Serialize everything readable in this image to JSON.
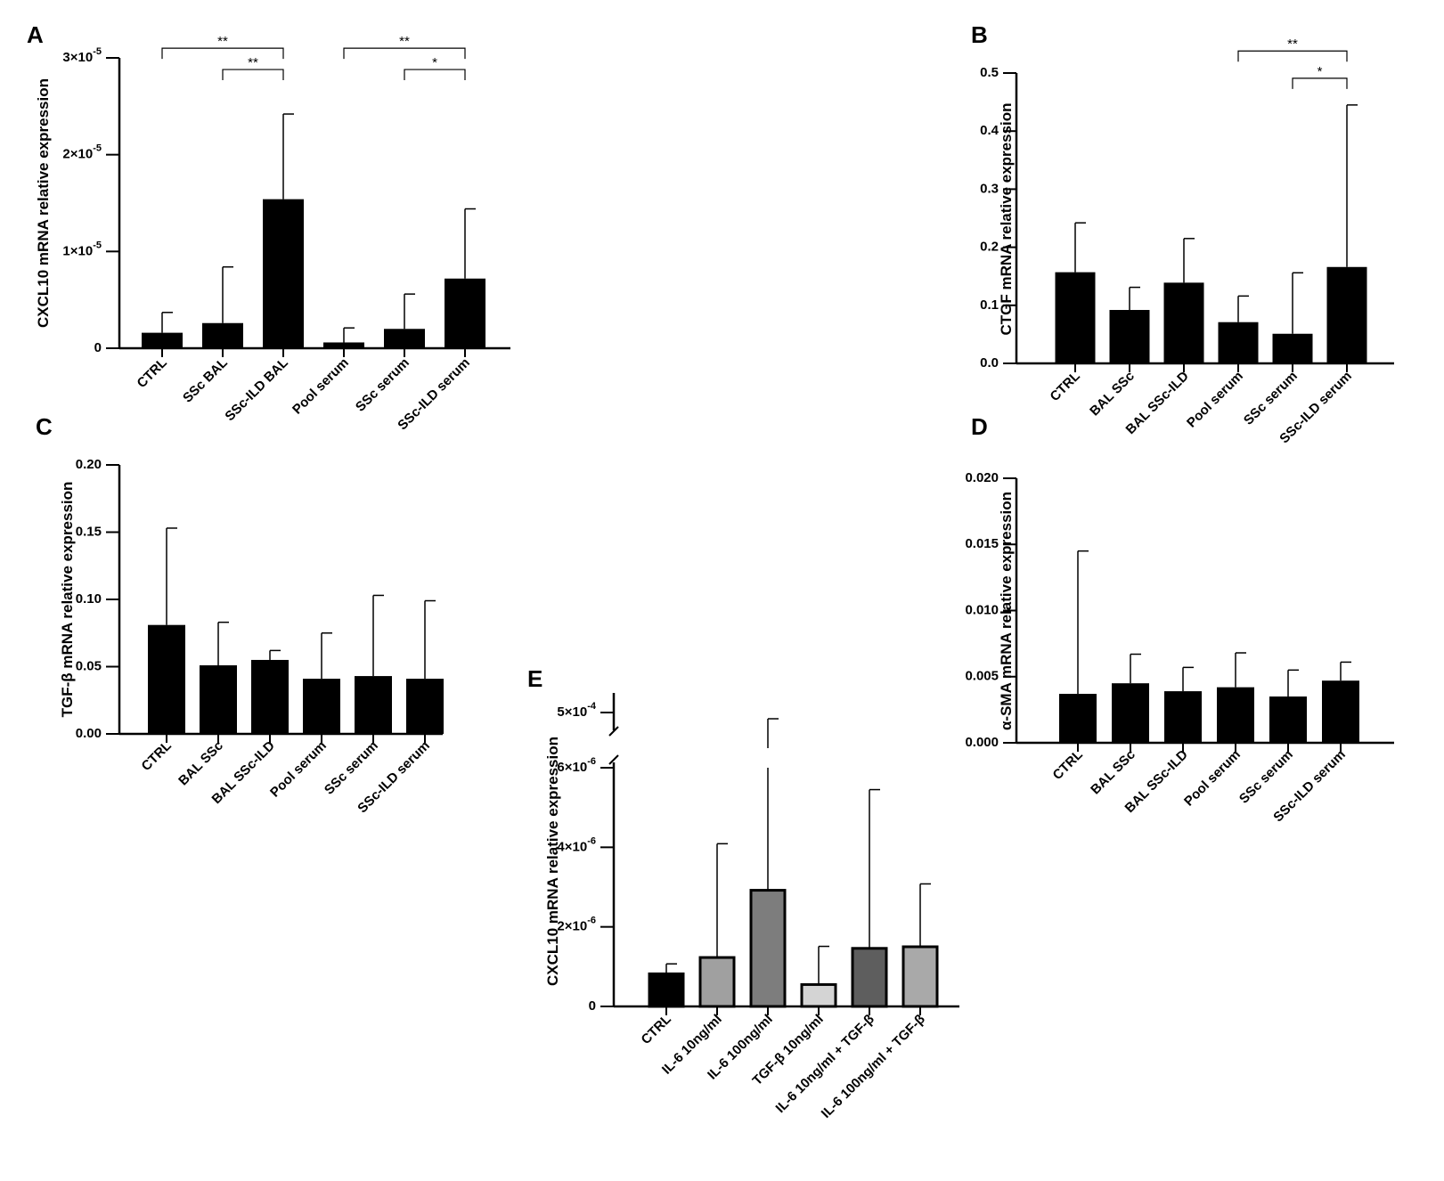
{
  "chart_data": [
    {
      "panel": "A",
      "type": "bar",
      "ylabel": "CXCL10 mRNA relative expression",
      "categories": [
        "CTRL",
        "SSc BAL",
        "SSc-ILD BAL",
        "Pool serum",
        "SSc serum",
        "SSc-ILD serum"
      ],
      "values": [
        1.6e-06,
        2.6e-06,
        1.54e-05,
        6e-07,
        2e-06,
        7.2e-06
      ],
      "errors": [
        2.1e-06,
        5.8e-06,
        8.8e-06,
        1.5e-06,
        3.6e-06,
        7.2e-06
      ],
      "ylim": [
        0,
        3e-05
      ],
      "ticks": [
        0,
        1e-05,
        2e-05,
        3e-05
      ],
      "tick_labels": [
        {
          "base": "0",
          "exp": ""
        },
        {
          "base": "1×10",
          "exp": "-5"
        },
        {
          "base": "2×10",
          "exp": "-5"
        },
        {
          "base": "3×10",
          "exp": "-5"
        }
      ],
      "bar_colors": [
        "#000000",
        "#000000",
        "#000000",
        "#000000",
        "#000000",
        "#000000"
      ],
      "significance": [
        {
          "from": 0,
          "to": 2,
          "label": "**",
          "level": 3.1e-05
        },
        {
          "from": 1,
          "to": 2,
          "label": "**",
          "level": 2.88e-05
        },
        {
          "from": 3,
          "to": 5,
          "label": "**",
          "level": 3.1e-05
        },
        {
          "from": 4,
          "to": 5,
          "label": "*",
          "level": 2.88e-05
        }
      ]
    },
    {
      "panel": "B",
      "type": "bar",
      "ylabel": "CTGF mRNA relative expression",
      "categories": [
        "CTRL",
        "BAL SSc",
        "BAL SSc-ILD",
        "Pool serum",
        "SSc serum",
        "SSc-ILD serum"
      ],
      "values": [
        0.157,
        0.092,
        0.139,
        0.071,
        0.051,
        0.166
      ],
      "errors": [
        0.085,
        0.039,
        0.076,
        0.045,
        0.105,
        0.279
      ],
      "ylim": [
        0,
        0.5
      ],
      "ticks": [
        0,
        0.1,
        0.2,
        0.3,
        0.4,
        0.5
      ],
      "tick_labels": [
        "0.0",
        "0.1",
        "0.2",
        "0.3",
        "0.4",
        "0.5"
      ],
      "bar_colors": [
        "#000000",
        "#000000",
        "#000000",
        "#000000",
        "#000000",
        "#000000"
      ],
      "significance": [
        {
          "from": 3,
          "to": 5,
          "label": "**",
          "level": 0.538
        },
        {
          "from": 4,
          "to": 5,
          "label": "*",
          "level": 0.491
        }
      ]
    },
    {
      "panel": "C",
      "type": "bar",
      "ylabel": "TGF-β mRNA relative expression",
      "categories": [
        "CTRL",
        "BAL SSc",
        "BAL SSc-ILD",
        "Pool serum",
        "SSc serum",
        "SSc-ILD serum"
      ],
      "values": [
        0.081,
        0.051,
        0.055,
        0.041,
        0.043,
        0.041
      ],
      "errors": [
        0.072,
        0.032,
        0.007,
        0.034,
        0.06,
        0.058
      ],
      "ylim": [
        0,
        0.2
      ],
      "ticks": [
        0,
        0.05,
        0.1,
        0.15,
        0.2
      ],
      "tick_labels": [
        "0.00",
        "0.05",
        "0.10",
        "0.15",
        "0.20"
      ],
      "bar_colors": [
        "#000000",
        "#000000",
        "#000000",
        "#000000",
        "#000000",
        "#000000"
      ],
      "significance": []
    },
    {
      "panel": "D",
      "type": "bar",
      "ylabel": "α-SMA mRNA relative expression",
      "categories": [
        "CTRL",
        "BAL SSc",
        "BAL SSc-ILD",
        "Pool serum",
        "SSc serum",
        "SSc-ILD serum"
      ],
      "values": [
        0.0037,
        0.0045,
        0.0039,
        0.0042,
        0.0035,
        0.0047
      ],
      "errors": [
        0.0108,
        0.0022,
        0.0018,
        0.0026,
        0.002,
        0.0014
      ],
      "ylim": [
        0,
        0.02
      ],
      "ticks": [
        0,
        0.005,
        0.01,
        0.015,
        0.02
      ],
      "tick_labels": [
        "0.000",
        "0.005",
        "0.010",
        "0.015",
        "0.020"
      ],
      "bar_colors": [
        "#000000",
        "#000000",
        "#000000",
        "#000000",
        "#000000",
        "#000000"
      ],
      "significance": []
    },
    {
      "panel": "E",
      "type": "bar",
      "ylabel": "CXCL10 mRNA relative expression",
      "categories": [
        "CTRL",
        "IL-6 10ng/ml",
        "IL-6 100ng/ml",
        "TGF-β 10ng/ml",
        "IL-6 10ng/ml + TGF-β",
        "IL-6 100ng/ml + TGF-β"
      ],
      "values": [
        8.2e-07,
        1.23e-06,
        2.92e-06,
        5.5e-07,
        1.46e-06,
        1.5e-06
      ],
      "errors": [
        2.5e-07,
        2.86e-06,
        3.3e-06,
        9.6e-07,
        3.99e-06,
        1.58e-06
      ],
      "ylim": [
        0,
        6e-06
      ],
      "axis_break": true,
      "upper_segment_tick": 0.0005,
      "ticks": [
        0,
        2e-06,
        4e-06,
        6e-06
      ],
      "tick_labels": [
        {
          "base": "0",
          "exp": ""
        },
        {
          "base": "2×10",
          "exp": "-6"
        },
        {
          "base": "4×10",
          "exp": "-6"
        },
        {
          "base": "6×10",
          "exp": "-6"
        }
      ],
      "upper_tick_label": {
        "base": "5×10",
        "exp": "-4"
      },
      "bar_colors": [
        "#000000",
        "#a0a0a0",
        "#7d7d7d",
        "#d4d4d4",
        "#5e5e5e",
        "#a9a9a9"
      ],
      "significance": []
    }
  ]
}
